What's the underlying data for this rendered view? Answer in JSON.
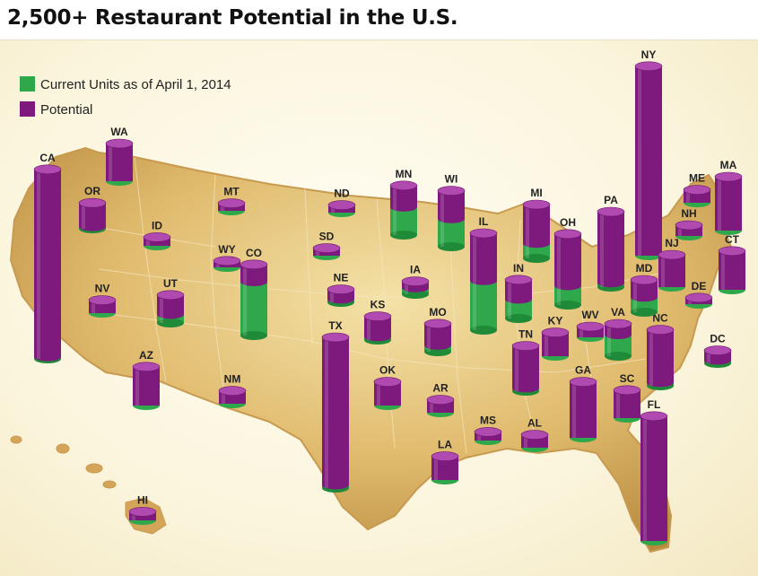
{
  "title": "2,500+ Restaurant Potential in the U.S.",
  "legend": {
    "current_label": "Current Units as of April 1, 2014",
    "potential_label": "Potential"
  },
  "colors": {
    "current": "#2ea84a",
    "potential": "#7e1a7e",
    "land": "#d9ae60"
  },
  "chart_data": {
    "type": "map-bar",
    "title": "2,500+ Restaurant Potential in the U.S.",
    "series": [
      {
        "name": "Current Units as of April 1, 2014",
        "color": "#2ea84a"
      },
      {
        "name": "Potential",
        "color": "#7e1a7e"
      }
    ],
    "states": [
      {
        "state": "CA",
        "current": 2,
        "potential": 176
      },
      {
        "state": "WA",
        "current": 0,
        "potential": 35
      },
      {
        "state": "OR",
        "current": 2,
        "potential": 24
      },
      {
        "state": "NV",
        "current": 0,
        "potential": 12
      },
      {
        "state": "ID",
        "current": 0,
        "potential": 8
      },
      {
        "state": "MT",
        "current": 0,
        "potential": 7
      },
      {
        "state": "WY",
        "current": 0,
        "potential": 6
      },
      {
        "state": "UT",
        "current": 8,
        "potential": 26
      },
      {
        "state": "AZ",
        "current": 0,
        "potential": 36
      },
      {
        "state": "CO",
        "current": 50,
        "potential": 66
      },
      {
        "state": "NM",
        "current": 0,
        "potential": 12
      },
      {
        "state": "ND",
        "current": 0,
        "potential": 7
      },
      {
        "state": "SD",
        "current": 0,
        "potential": 7
      },
      {
        "state": "NE",
        "current": 3,
        "potential": 12
      },
      {
        "state": "KS",
        "current": 3,
        "potential": 22
      },
      {
        "state": "OK",
        "current": 0,
        "potential": 22
      },
      {
        "state": "TX",
        "current": 3,
        "potential": 140
      },
      {
        "state": "MN",
        "current": 26,
        "potential": 46
      },
      {
        "state": "IA",
        "current": 6,
        "potential": 12
      },
      {
        "state": "MO",
        "current": 6,
        "potential": 26
      },
      {
        "state": "AR",
        "current": 0,
        "potential": 12
      },
      {
        "state": "LA",
        "current": 0,
        "potential": 22
      },
      {
        "state": "WI",
        "current": 26,
        "potential": 52
      },
      {
        "state": "IL",
        "current": 46,
        "potential": 90
      },
      {
        "state": "MS",
        "current": 0,
        "potential": 8
      },
      {
        "state": "MI",
        "current": 14,
        "potential": 50
      },
      {
        "state": "IN",
        "current": 18,
        "potential": 36
      },
      {
        "state": "OH",
        "current": 18,
        "potential": 66
      },
      {
        "state": "KY",
        "current": 0,
        "potential": 22
      },
      {
        "state": "TN",
        "current": 3,
        "potential": 42
      },
      {
        "state": "AL",
        "current": 0,
        "potential": 12
      },
      {
        "state": "GA",
        "current": 0,
        "potential": 52
      },
      {
        "state": "FL",
        "current": 0,
        "potential": 116
      },
      {
        "state": "SC",
        "current": 0,
        "potential": 26
      },
      {
        "state": "NC",
        "current": 3,
        "potential": 52
      },
      {
        "state": "VA",
        "current": 20,
        "potential": 30
      },
      {
        "state": "WV",
        "current": 0,
        "potential": 10
      },
      {
        "state": "PA",
        "current": 4,
        "potential": 70
      },
      {
        "state": "NY",
        "current": 0,
        "potential": 176
      },
      {
        "state": "MD",
        "current": 14,
        "potential": 30
      },
      {
        "state": "DE",
        "current": 0,
        "potential": 6
      },
      {
        "state": "DC",
        "current": 3,
        "potential": 12
      },
      {
        "state": "NJ",
        "current": 0,
        "potential": 30
      },
      {
        "state": "CT",
        "current": 0,
        "potential": 36
      },
      {
        "state": "NH",
        "current": 0,
        "potential": 10
      },
      {
        "state": "ME",
        "current": 0,
        "potential": 12
      },
      {
        "state": "MA",
        "current": 0,
        "potential": 50
      },
      {
        "state": "HI",
        "current": 0,
        "potential": 8
      }
    ]
  }
}
